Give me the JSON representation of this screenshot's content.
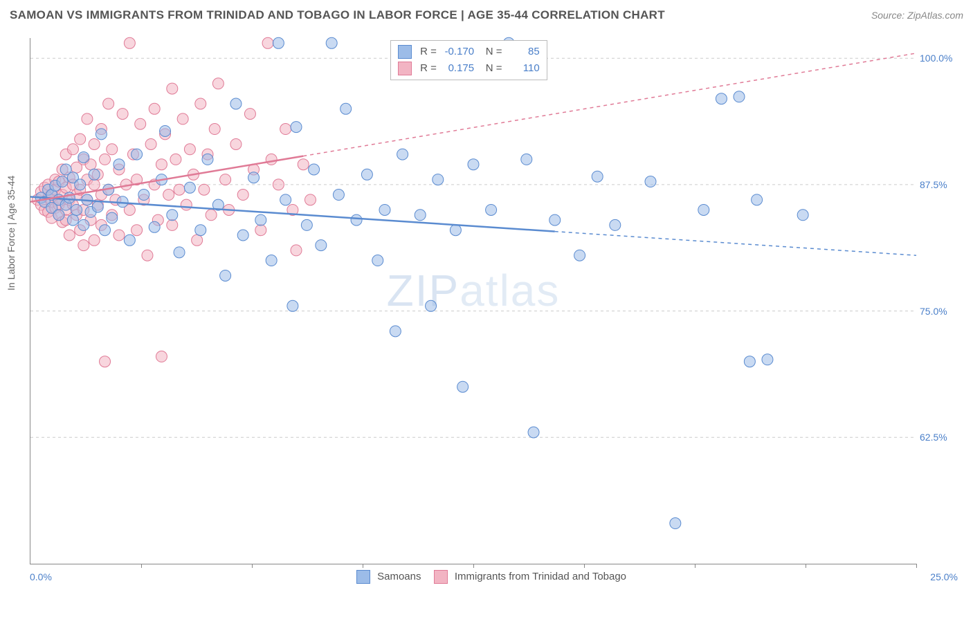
{
  "title": "SAMOAN VS IMMIGRANTS FROM TRINIDAD AND TOBAGO IN LABOR FORCE | AGE 35-44 CORRELATION CHART",
  "source": "Source: ZipAtlas.com",
  "ylabel": "In Labor Force | Age 35-44",
  "watermark_a": "ZIP",
  "watermark_b": "atlas",
  "chart": {
    "type": "scatter",
    "xlim": [
      0,
      25
    ],
    "ylim": [
      50,
      102
    ],
    "x_left_label": "0.0%",
    "x_right_label": "25.0%",
    "xtick_positions": [
      3.125,
      6.25,
      9.375,
      12.5,
      15.625,
      18.75,
      21.875,
      25.0
    ],
    "yticks": [
      62.5,
      75.0,
      87.5,
      100.0
    ],
    "ytick_labels": [
      "62.5%",
      "75.0%",
      "87.5%",
      "100.0%"
    ],
    "grid_color": "#cccccc",
    "background_color": "#ffffff",
    "marker_radius": 8,
    "marker_opacity": 0.55,
    "series": [
      {
        "name": "Samoans",
        "fill": "#9cbce8",
        "stroke": "#5a8bd0",
        "R": "-0.170",
        "N": "85",
        "trend": {
          "x1": 0,
          "y1": 86.3,
          "x2": 25,
          "y2": 80.5,
          "solid_until_x": 14.8
        },
        "points": [
          [
            0.3,
            86.2
          ],
          [
            0.4,
            85.8
          ],
          [
            0.5,
            87.0
          ],
          [
            0.6,
            86.5
          ],
          [
            0.6,
            85.2
          ],
          [
            0.7,
            87.4
          ],
          [
            0.8,
            86.0
          ],
          [
            0.8,
            84.5
          ],
          [
            0.9,
            87.8
          ],
          [
            1.0,
            85.5
          ],
          [
            1.0,
            89.0
          ],
          [
            1.1,
            86.2
          ],
          [
            1.2,
            84.0
          ],
          [
            1.2,
            88.2
          ],
          [
            1.3,
            85.0
          ],
          [
            1.4,
            87.5
          ],
          [
            1.5,
            83.5
          ],
          [
            1.5,
            90.2
          ],
          [
            1.6,
            86.0
          ],
          [
            1.7,
            84.8
          ],
          [
            1.8,
            88.5
          ],
          [
            1.9,
            85.3
          ],
          [
            2.0,
            92.5
          ],
          [
            2.1,
            83.0
          ],
          [
            2.2,
            87.0
          ],
          [
            2.3,
            84.2
          ],
          [
            2.5,
            89.5
          ],
          [
            2.6,
            85.8
          ],
          [
            2.8,
            82.0
          ],
          [
            3.0,
            90.5
          ],
          [
            3.2,
            86.5
          ],
          [
            3.5,
            83.3
          ],
          [
            3.7,
            88.0
          ],
          [
            3.8,
            92.8
          ],
          [
            4.0,
            84.5
          ],
          [
            4.2,
            80.8
          ],
          [
            4.5,
            87.2
          ],
          [
            4.8,
            83.0
          ],
          [
            5.0,
            90.0
          ],
          [
            5.3,
            85.5
          ],
          [
            5.5,
            78.5
          ],
          [
            5.8,
            95.5
          ],
          [
            6.0,
            82.5
          ],
          [
            6.3,
            88.2
          ],
          [
            6.5,
            84.0
          ],
          [
            6.8,
            80.0
          ],
          [
            7.0,
            101.5
          ],
          [
            7.2,
            86.0
          ],
          [
            7.4,
            75.5
          ],
          [
            7.5,
            93.2
          ],
          [
            7.8,
            83.5
          ],
          [
            8.0,
            89.0
          ],
          [
            8.2,
            81.5
          ],
          [
            8.5,
            101.5
          ],
          [
            8.7,
            86.5
          ],
          [
            8.9,
            95.0
          ],
          [
            9.2,
            84.0
          ],
          [
            9.5,
            88.5
          ],
          [
            9.8,
            80.0
          ],
          [
            10.0,
            85.0
          ],
          [
            10.3,
            73.0
          ],
          [
            10.5,
            90.5
          ],
          [
            11.0,
            84.5
          ],
          [
            11.3,
            75.5
          ],
          [
            11.5,
            88.0
          ],
          [
            12.0,
            83.0
          ],
          [
            12.2,
            67.5
          ],
          [
            12.5,
            89.5
          ],
          [
            13.0,
            85.0
          ],
          [
            13.5,
            101.5
          ],
          [
            14.0,
            90.0
          ],
          [
            14.2,
            63.0
          ],
          [
            14.8,
            84.0
          ],
          [
            15.5,
            80.5
          ],
          [
            16.0,
            88.3
          ],
          [
            16.5,
            83.5
          ],
          [
            17.5,
            87.8
          ],
          [
            18.2,
            54.0
          ],
          [
            19.0,
            85.0
          ],
          [
            19.5,
            96.0
          ],
          [
            20.0,
            96.2
          ],
          [
            20.3,
            70.0
          ],
          [
            20.5,
            86.0
          ],
          [
            20.8,
            70.2
          ],
          [
            21.8,
            84.5
          ]
        ]
      },
      {
        "name": "Immigrants from Trinidad and Tobago",
        "fill": "#f2b4c3",
        "stroke": "#e07a96",
        "R": "0.175",
        "N": "110",
        "trend": {
          "x1": 0,
          "y1": 85.8,
          "x2": 25,
          "y2": 100.5,
          "solid_until_x": 7.7
        },
        "points": [
          [
            0.2,
            86.0
          ],
          [
            0.3,
            85.5
          ],
          [
            0.3,
            86.8
          ],
          [
            0.4,
            85.0
          ],
          [
            0.4,
            87.2
          ],
          [
            0.5,
            86.2
          ],
          [
            0.5,
            84.8
          ],
          [
            0.5,
            87.5
          ],
          [
            0.6,
            85.8
          ],
          [
            0.6,
            86.5
          ],
          [
            0.6,
            84.2
          ],
          [
            0.7,
            87.0
          ],
          [
            0.7,
            85.2
          ],
          [
            0.7,
            88.0
          ],
          [
            0.8,
            86.0
          ],
          [
            0.8,
            84.5
          ],
          [
            0.8,
            87.8
          ],
          [
            0.8,
            85.5
          ],
          [
            0.9,
            89.0
          ],
          [
            0.9,
            86.5
          ],
          [
            0.9,
            83.8
          ],
          [
            1.0,
            87.2
          ],
          [
            1.0,
            85.0
          ],
          [
            1.0,
            90.5
          ],
          [
            1.0,
            84.0
          ],
          [
            1.1,
            88.2
          ],
          [
            1.1,
            86.0
          ],
          [
            1.1,
            82.5
          ],
          [
            1.2,
            91.0
          ],
          [
            1.2,
            85.5
          ],
          [
            1.2,
            87.5
          ],
          [
            1.3,
            84.5
          ],
          [
            1.3,
            89.2
          ],
          [
            1.3,
            86.5
          ],
          [
            1.4,
            83.0
          ],
          [
            1.4,
            92.0
          ],
          [
            1.4,
            87.0
          ],
          [
            1.5,
            85.0
          ],
          [
            1.5,
            90.0
          ],
          [
            1.5,
            81.5
          ],
          [
            1.6,
            88.0
          ],
          [
            1.6,
            86.0
          ],
          [
            1.6,
            94.0
          ],
          [
            1.7,
            84.0
          ],
          [
            1.7,
            89.5
          ],
          [
            1.8,
            87.5
          ],
          [
            1.8,
            82.0
          ],
          [
            1.8,
            91.5
          ],
          [
            1.9,
            85.5
          ],
          [
            1.9,
            88.5
          ],
          [
            2.0,
            86.5
          ],
          [
            2.0,
            93.0
          ],
          [
            2.0,
            83.5
          ],
          [
            2.1,
            90.0
          ],
          [
            2.1,
            70.0
          ],
          [
            2.2,
            87.0
          ],
          [
            2.2,
            95.5
          ],
          [
            2.3,
            84.5
          ],
          [
            2.3,
            91.0
          ],
          [
            2.4,
            86.0
          ],
          [
            2.5,
            89.0
          ],
          [
            2.5,
            82.5
          ],
          [
            2.6,
            94.5
          ],
          [
            2.7,
            87.5
          ],
          [
            2.8,
            85.0
          ],
          [
            2.8,
            101.5
          ],
          [
            2.9,
            90.5
          ],
          [
            3.0,
            83.0
          ],
          [
            3.0,
            88.0
          ],
          [
            3.1,
            93.5
          ],
          [
            3.2,
            86.0
          ],
          [
            3.3,
            80.5
          ],
          [
            3.4,
            91.5
          ],
          [
            3.5,
            87.5
          ],
          [
            3.5,
            95.0
          ],
          [
            3.6,
            84.0
          ],
          [
            3.7,
            89.5
          ],
          [
            3.7,
            70.5
          ],
          [
            3.8,
            92.5
          ],
          [
            3.9,
            86.5
          ],
          [
            4.0,
            97.0
          ],
          [
            4.0,
            83.5
          ],
          [
            4.1,
            90.0
          ],
          [
            4.2,
            87.0
          ],
          [
            4.3,
            94.0
          ],
          [
            4.4,
            85.5
          ],
          [
            4.5,
            91.0
          ],
          [
            4.6,
            88.5
          ],
          [
            4.7,
            82.0
          ],
          [
            4.8,
            95.5
          ],
          [
            4.9,
            87.0
          ],
          [
            5.0,
            90.5
          ],
          [
            5.1,
            84.5
          ],
          [
            5.2,
            93.0
          ],
          [
            5.3,
            97.5
          ],
          [
            5.5,
            88.0
          ],
          [
            5.6,
            85.0
          ],
          [
            5.8,
            91.5
          ],
          [
            6.0,
            86.5
          ],
          [
            6.2,
            94.5
          ],
          [
            6.3,
            89.0
          ],
          [
            6.5,
            83.0
          ],
          [
            6.7,
            101.5
          ],
          [
            6.8,
            90.0
          ],
          [
            7.0,
            87.5
          ],
          [
            7.2,
            93.0
          ],
          [
            7.4,
            85.0
          ],
          [
            7.5,
            81.0
          ],
          [
            7.7,
            89.5
          ],
          [
            7.9,
            86.0
          ]
        ]
      }
    ]
  },
  "legend": {
    "series1_label": "Samoans",
    "series2_label": "Immigrants from Trinidad and Tobago"
  },
  "statbox": {
    "R_label": "R =",
    "N_label": "N ="
  }
}
